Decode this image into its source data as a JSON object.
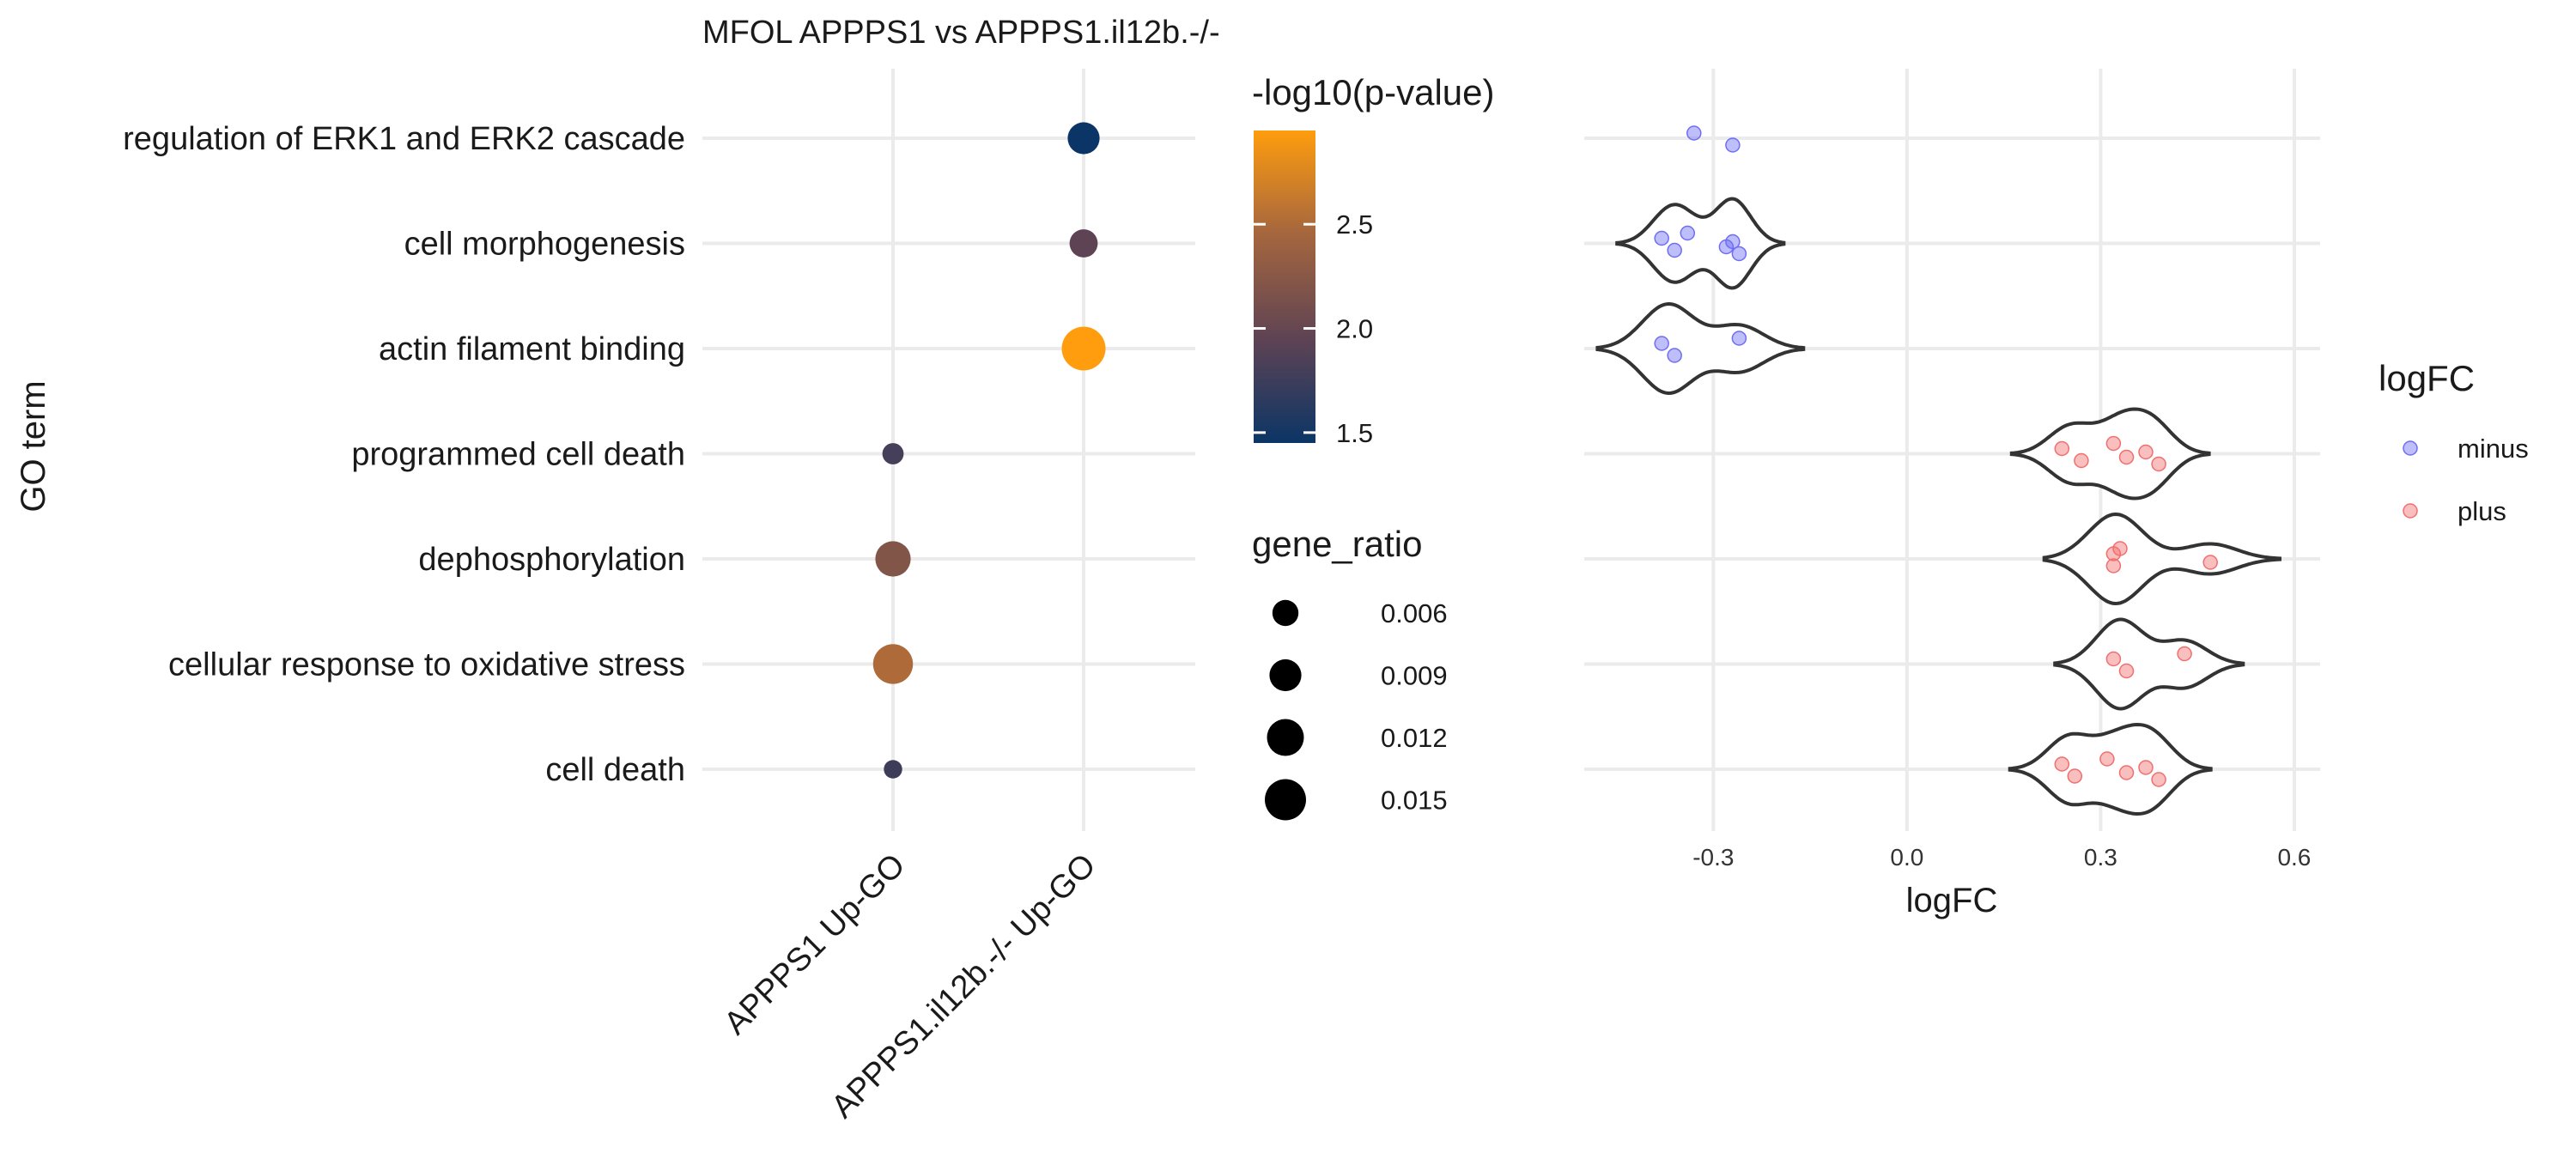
{
  "chart_data": [
    {
      "type": "scatter",
      "title": "MFOL APPPS1 vs APPPS1.il12b.-/-",
      "ylabel": "GO term",
      "xlabel": "",
      "y_categories": [
        "regulation of ERK1 and ERK2 cascade",
        "cell morphogenesis",
        "actin filament binding",
        "programmed cell death",
        "dephosphorylation",
        "cellular response to oxidative stress",
        "cell death"
      ],
      "x_categories": [
        "APPPS1 Up-GO",
        "APPPS1.il12b.-/- Up-GO"
      ],
      "points": [
        {
          "term": "regulation of ERK1 and ERK2 cascade",
          "group": "APPPS1.il12b.-/- Up-GO",
          "neg_log10_p": 1.45,
          "gene_ratio": 0.009
        },
        {
          "term": "cell morphogenesis",
          "group": "APPPS1.il12b.-/- Up-GO",
          "neg_log10_p": 1.95,
          "gene_ratio": 0.007
        },
        {
          "term": "actin filament binding",
          "group": "APPPS1.il12b.-/- Up-GO",
          "neg_log10_p": 2.95,
          "gene_ratio": 0.017
        },
        {
          "term": "programmed cell death",
          "group": "APPPS1 Up-GO",
          "neg_log10_p": 1.8,
          "gene_ratio": 0.004
        },
        {
          "term": "dephosphorylation",
          "group": "APPPS1 Up-GO",
          "neg_log10_p": 2.2,
          "gene_ratio": 0.011
        },
        {
          "term": "cellular response to oxidative stress",
          "group": "APPPS1 Up-GO",
          "neg_log10_p": 2.5,
          "gene_ratio": 0.014
        },
        {
          "term": "cell death",
          "group": "APPPS1 Up-GO",
          "neg_log10_p": 1.75,
          "gene_ratio": 0.003
        }
      ],
      "color_legend": {
        "title": "-log10(p-value)",
        "range": [
          1.45,
          2.95
        ],
        "ticks": [
          1.5,
          2.0,
          2.5
        ],
        "tick_labels": [
          "1.5",
          "2.0",
          "2.5"
        ],
        "colors": [
          "#0b3566",
          "#5e4354",
          "#a5663e",
          "#ff9d0e"
        ]
      },
      "size_legend": {
        "title": "gene_ratio",
        "values": [
          0.006,
          0.009,
          0.012,
          0.015
        ],
        "labels": [
          "0.006",
          "0.009",
          "0.012",
          "0.015"
        ]
      }
    },
    {
      "type": "violin",
      "xlabel": "logFC",
      "xlim": [
        -0.5,
        0.64
      ],
      "x_ticks": [
        -0.3,
        0.0,
        0.3,
        0.6
      ],
      "x_tick_labels": [
        "-0.3",
        "0.0",
        "0.3",
        "0.6"
      ],
      "legend": {
        "title": "logFC",
        "entries": [
          {
            "label": "minus",
            "color": "#6e6ef5"
          },
          {
            "label": "plus",
            "color": "#f26e6e"
          }
        ]
      },
      "rows": [
        {
          "term": "regulation of ERK1 and ERK2 cascade",
          "direction": "minus",
          "values": [
            -0.33,
            -0.27
          ]
        },
        {
          "term": "cell morphogenesis",
          "direction": "minus",
          "values": [
            -0.38,
            -0.36,
            -0.34,
            -0.28,
            -0.27,
            -0.26
          ]
        },
        {
          "term": "actin filament binding",
          "direction": "minus",
          "values": [
            -0.38,
            -0.36,
            -0.26
          ]
        },
        {
          "term": "programmed cell death",
          "direction": "plus",
          "values": [
            0.24,
            0.27,
            0.32,
            0.34,
            0.37,
            0.39
          ]
        },
        {
          "term": "dephosphorylation",
          "direction": "plus",
          "values": [
            0.32,
            0.32,
            0.33,
            0.47
          ]
        },
        {
          "term": "cellular response to oxidative stress",
          "direction": "plus",
          "values": [
            0.32,
            0.34,
            0.43
          ]
        },
        {
          "term": "cell death",
          "direction": "plus",
          "values": [
            0.24,
            0.26,
            0.31,
            0.34,
            0.37,
            0.39
          ]
        }
      ]
    }
  ]
}
